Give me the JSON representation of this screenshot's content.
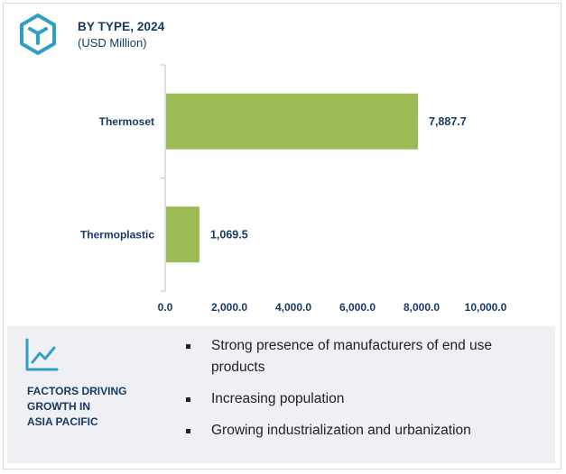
{
  "header": {
    "title": "BY TYPE, 2024",
    "subtitle": "(USD Million)",
    "icon": "hexagon-cube-icon",
    "accent": "#2f9fc4"
  },
  "chart_data": {
    "type": "bar",
    "orientation": "horizontal",
    "categories": [
      "Thermoset",
      "Thermoplastic"
    ],
    "values": [
      7887.7,
      1069.5
    ],
    "value_labels": [
      "7,887.7",
      "1,069.5"
    ],
    "xlim": [
      0,
      10000
    ],
    "xticks": [
      0,
      2000,
      4000,
      6000,
      8000,
      10000
    ],
    "xtick_labels": [
      "0.0",
      "2,000.0",
      "4,000.0",
      "6,000.0",
      "8,000.0",
      "10,000.0"
    ],
    "bar_color": "#9dbb55",
    "grid": false,
    "legend": "none"
  },
  "factors": {
    "icon": "line-chart-icon",
    "title_lines": [
      "FACTORS DRIVING",
      "GROWTH IN",
      "ASIA PACIFIC"
    ],
    "items": [
      "Strong presence of manufacturers of end use products",
      "Increasing population",
      "Growing industrialization and urbanization"
    ],
    "background": "#eef0f4"
  }
}
